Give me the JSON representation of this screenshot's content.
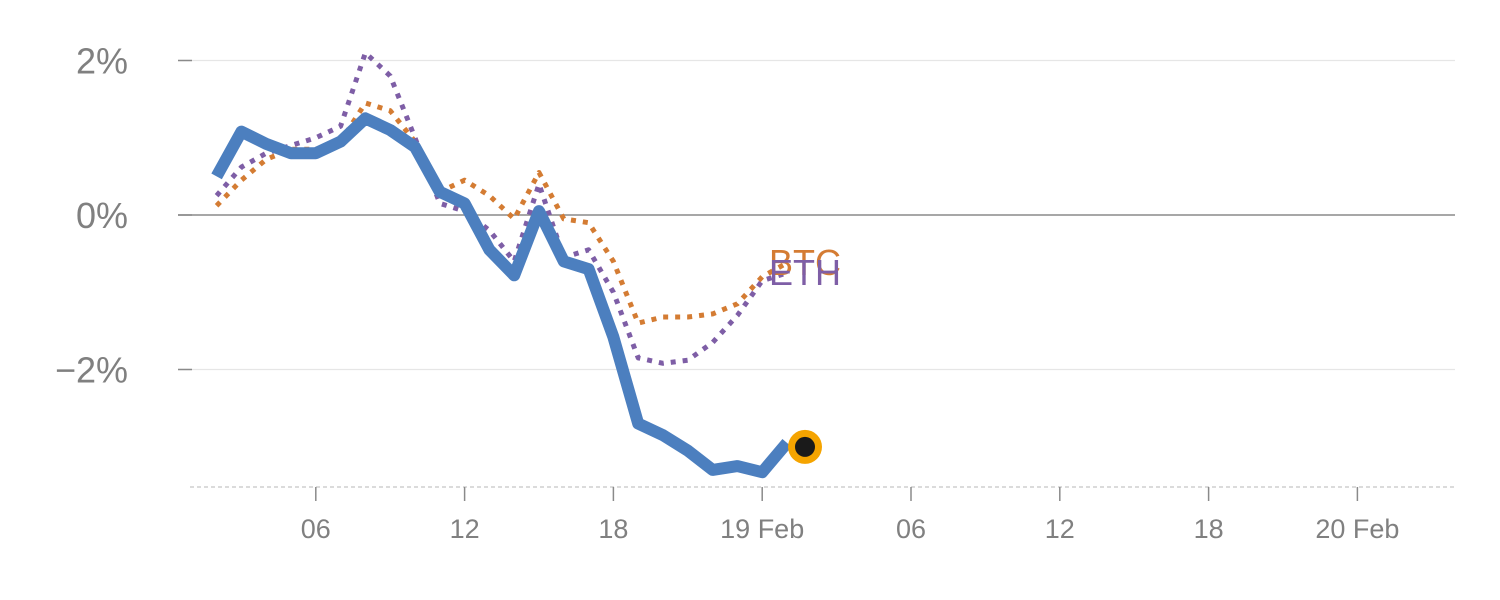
{
  "chart_data": {
    "type": "line",
    "title": "",
    "xlabel": "",
    "ylabel": "",
    "x_hours": [
      2,
      3,
      4,
      5,
      6,
      7,
      8,
      9,
      10,
      11,
      12,
      13,
      14,
      15,
      16,
      17,
      18,
      19,
      20,
      21,
      22,
      23,
      24,
      25
    ],
    "xlim_hours": [
      0,
      52
    ],
    "ylim": [
      -3.5,
      2.3
    ],
    "y_ticks": [
      {
        "value": 2,
        "label": "2%"
      },
      {
        "value": 0,
        "label": "0%"
      },
      {
        "value": -2,
        "label": "−2%"
      }
    ],
    "x_ticks": [
      {
        "hour": 6,
        "label": "06"
      },
      {
        "hour": 12,
        "label": "12"
      },
      {
        "hour": 18,
        "label": "18"
      },
      {
        "hour": 24,
        "label": "19 Feb"
      },
      {
        "hour": 30,
        "label": "06"
      },
      {
        "hour": 36,
        "label": "12"
      },
      {
        "hour": 42,
        "label": "18"
      },
      {
        "hour": 48,
        "label": "20 Feb"
      }
    ],
    "zero_line": true,
    "grid": true,
    "series": [
      {
        "key": "btc",
        "name": "BTC",
        "color": "#d47c33",
        "style": "dotted",
        "values": [
          0.12,
          0.45,
          0.72,
          0.85,
          0.85,
          0.95,
          1.45,
          1.35,
          0.95,
          0.3,
          0.45,
          0.25,
          -0.05,
          0.55,
          -0.05,
          -0.1,
          -0.6,
          -1.4,
          -1.32,
          -1.32,
          -1.28,
          -1.15,
          -0.8,
          -0.62
        ]
      },
      {
        "key": "eth",
        "name": "ETH",
        "color": "#7e5ea6",
        "style": "dotted",
        "values": [
          0.25,
          0.62,
          0.8,
          0.9,
          1.0,
          1.15,
          2.1,
          1.8,
          1.0,
          0.15,
          0.05,
          -0.2,
          -0.6,
          0.4,
          -0.55,
          -0.45,
          -1.0,
          -1.85,
          -1.92,
          -1.88,
          -1.65,
          -1.3,
          -0.85,
          -0.75
        ]
      },
      {
        "key": "main",
        "name": "",
        "color": "#4c7fbf",
        "style": "solid",
        "values": [
          0.5,
          1.08,
          0.92,
          0.8,
          0.8,
          0.95,
          1.25,
          1.1,
          0.88,
          0.3,
          0.15,
          -0.45,
          -0.78,
          0.05,
          -0.6,
          -0.7,
          -1.58,
          -2.7,
          -2.85,
          -3.05,
          -3.3,
          -3.25,
          -3.33,
          -2.95
        ]
      }
    ],
    "end_marker": {
      "series": "main",
      "fill": "#1a1a1a",
      "ring": "#f5a400"
    }
  }
}
